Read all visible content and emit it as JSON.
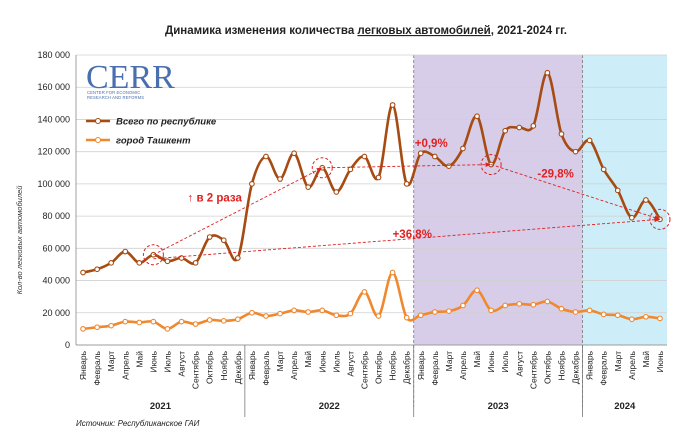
{
  "chart_data": {
    "type": "line",
    "title_prefix": "Динамика изменения количества ",
    "title_underlined": "легковых автомобилей",
    "title_suffix": ", 2021-2024 гг.",
    "ylabel": "Кол-во легковых автомобилей",
    "ylim": [
      0,
      180000
    ],
    "yticks": [
      0,
      20000,
      40000,
      60000,
      80000,
      100000,
      120000,
      140000,
      160000,
      180000
    ],
    "ytick_labels": [
      "0",
      "20 000",
      "40 000",
      "60 000",
      "80 000",
      "100 000",
      "120 000",
      "140 000",
      "160 000",
      "180 000"
    ],
    "months": [
      "Январь",
      "Февраль",
      "Март",
      "Апрель",
      "Май",
      "Июнь",
      "Июль",
      "Август",
      "Сентябрь",
      "Октябрь",
      "Ноябрь",
      "Декабрь",
      "Январь",
      "Февраль",
      "Март",
      "Апрель",
      "Май",
      "Июнь",
      "Июль",
      "Август",
      "Сентябрь",
      "Октябрь",
      "Ноябрь",
      "Декабрь",
      "Январь",
      "Февраль",
      "Март",
      "Апрель",
      "Май",
      "Июнь",
      "Июль",
      "Август",
      "Сентябрь",
      "Октябрь",
      "Ноябрь",
      "Декабрь",
      "Январь",
      "Февраль",
      "Март",
      "Апрель",
      "Май",
      "Июнь"
    ],
    "years": [
      {
        "label": "2021",
        "start": 0,
        "end": 11
      },
      {
        "label": "2022",
        "start": 12,
        "end": 23
      },
      {
        "label": "2023",
        "start": 24,
        "end": 35
      },
      {
        "label": "2024",
        "start": 36,
        "end": 41
      }
    ],
    "series": [
      {
        "name": "Всего по республике",
        "color": "#a64b12",
        "values": [
          45000,
          47000,
          51000,
          58000,
          51000,
          56000,
          52000,
          54000,
          51000,
          67000,
          65000,
          54000,
          100000,
          117000,
          103000,
          119000,
          98000,
          110000,
          95000,
          109000,
          117000,
          104000,
          149000,
          100000,
          119000,
          117000,
          111000,
          122000,
          142000,
          112000,
          133000,
          135000,
          136000,
          169000,
          131000,
          120000,
          127000,
          109000,
          96000,
          79000,
          90000,
          78000
        ]
      },
      {
        "name": "город Ташкент",
        "color": "#f0882e",
        "values": [
          10000,
          11000,
          12000,
          14500,
          14000,
          14500,
          10000,
          14500,
          13000,
          15500,
          15000,
          16000,
          20000,
          18000,
          19500,
          21500,
          20500,
          21500,
          18500,
          19500,
          33000,
          18000,
          45000,
          17000,
          18500,
          20500,
          21000,
          24500,
          34000,
          21500,
          24500,
          25500,
          25000,
          27000,
          22500,
          20500,
          21500,
          19000,
          18500,
          16000,
          17500,
          16500
        ]
      }
    ],
    "annotations": {
      "x2": "↑ в 2 раза",
      "p09": "+0,9%",
      "m298": "-29,8%",
      "p368": "+36,8%"
    },
    "shaded_ranges": [
      {
        "start": 24,
        "end": 35,
        "color": "#d7cde8"
      },
      {
        "start": 36,
        "end": 41,
        "color": "#cdeef8"
      }
    ],
    "highlight_points": [
      5,
      17,
      29,
      41
    ],
    "legend_position": "top-left"
  },
  "logo": {
    "big": "CERR",
    "line1": "CENTER FOR ECONOMIC",
    "line2": "RESEARCH AND REFORMS"
  },
  "source": "Источник: Республиканское ГАИ"
}
